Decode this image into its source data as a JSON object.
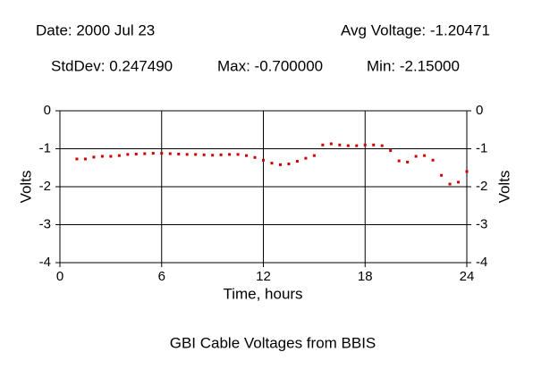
{
  "chart_data": {
    "type": "scatter",
    "title": "GBI Cable Voltages from BBIS",
    "header": [
      "Date: 2000 Jul 23",
      "Avg Voltage: -1.20471",
      "StdDev: 0.247490",
      "Max: -0.700000",
      "Min: -2.15000"
    ],
    "xlabel": "Time, hours",
    "ylabel": "Volts",
    "xlim": [
      0,
      24
    ],
    "xticks": [
      0,
      6,
      12,
      18,
      24
    ],
    "ylim": [
      -4,
      0
    ],
    "yticks": [
      0,
      -1,
      -2,
      -3,
      -4
    ],
    "grid": true,
    "series": [
      {
        "color": "#cc0000",
        "x": [
          1,
          1.5,
          2,
          2.5,
          3,
          3.5,
          4,
          4.5,
          5,
          5.5,
          6,
          6.5,
          7,
          7.5,
          8,
          8.5,
          9,
          9.5,
          10,
          10.5,
          11,
          11.5,
          12,
          12.5,
          13,
          13.5,
          14,
          14.5,
          15,
          15.5,
          16,
          16.5,
          17,
          17.5,
          18,
          18.5,
          19,
          19.5,
          20,
          20.5,
          21,
          21.5,
          22,
          22.5,
          23,
          23.5,
          24
        ],
        "values": [
          -1.27,
          -1.27,
          -1.22,
          -1.2,
          -1.2,
          -1.18,
          -1.15,
          -1.14,
          -1.13,
          -1.12,
          -1.12,
          -1.13,
          -1.14,
          -1.15,
          -1.15,
          -1.16,
          -1.17,
          -1.16,
          -1.15,
          -1.15,
          -1.18,
          -1.23,
          -1.3,
          -1.38,
          -1.42,
          -1.4,
          -1.33,
          -1.25,
          -1.18,
          -0.9,
          -0.87,
          -0.9,
          -0.92,
          -0.92,
          -0.9,
          -0.9,
          -0.92,
          -1.05,
          -1.32,
          -1.35,
          -1.2,
          -1.18,
          -1.3,
          -1.7,
          -1.93,
          -1.88,
          -1.6
        ]
      }
    ]
  }
}
